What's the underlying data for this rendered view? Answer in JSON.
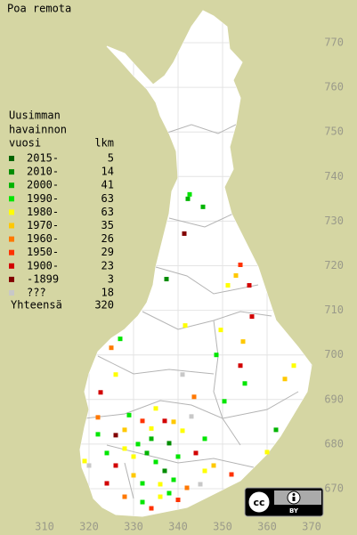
{
  "map": {
    "title": "Poa remota",
    "legend_header": [
      "Uusimman",
      "havainnon",
      "vuosi"
    ],
    "count_header": "lkm",
    "legend": [
      {
        "label": "2015-",
        "count": 5,
        "color": "#006400"
      },
      {
        "label": "2010-",
        "count": 14,
        "color": "#008c00"
      },
      {
        "label": "2000-",
        "count": 41,
        "color": "#00b400"
      },
      {
        "label": "1990-",
        "count": 63,
        "color": "#00e600"
      },
      {
        "label": "1980-",
        "count": 63,
        "color": "#ffff00"
      },
      {
        "label": "1970-",
        "count": 35,
        "color": "#ffc800"
      },
      {
        "label": "1960-",
        "count": 26,
        "color": "#ff7800"
      },
      {
        "label": "1950-",
        "count": 29,
        "color": "#ff3200"
      },
      {
        "label": "1900-",
        "count": 23,
        "color": "#d20000"
      },
      {
        "label": "-1899",
        "count": 3,
        "color": "#820000"
      },
      {
        "label": "???",
        "count": 18,
        "color": "#c8c8c8"
      }
    ],
    "total_label": "Yhteensä",
    "total": 320,
    "xticks": [
      310,
      320,
      330,
      340,
      350,
      360,
      370
    ],
    "yticks": [
      670,
      680,
      690,
      700,
      710,
      720,
      730,
      740,
      750,
      760,
      770
    ],
    "license": {
      "icon": "cc",
      "label": "BY"
    },
    "points": [
      [
        342.6,
        736,
        3
      ],
      [
        342.2,
        735,
        2
      ],
      [
        345.6,
        733.2,
        2
      ],
      [
        341.4,
        727.2,
        9
      ],
      [
        337.4,
        717,
        1
      ],
      [
        354,
        720.2,
        7
      ],
      [
        356,
        715.6,
        8
      ],
      [
        351.2,
        715.6,
        4
      ],
      [
        353,
        717.8,
        5
      ],
      [
        356.6,
        708.6,
        8
      ],
      [
        341.6,
        706.6,
        4
      ],
      [
        349.6,
        705.6,
        4
      ],
      [
        354.6,
        703,
        5
      ],
      [
        348.6,
        700,
        3
      ],
      [
        354,
        697.6,
        8
      ],
      [
        326,
        695.6,
        4
      ],
      [
        322.6,
        691.6,
        8
      ],
      [
        341,
        695.6,
        10
      ],
      [
        355,
        693.6,
        3
      ],
      [
        366,
        697.6,
        4
      ],
      [
        364,
        694.6,
        5
      ],
      [
        343.6,
        690.6,
        6
      ],
      [
        322,
        682.2,
        3
      ],
      [
        328,
        683.2,
        5
      ],
      [
        332,
        685.2,
        7
      ],
      [
        334,
        681.2,
        2
      ],
      [
        338,
        680.2,
        1
      ],
      [
        340,
        677.2,
        3
      ],
      [
        330,
        677.2,
        4
      ],
      [
        326,
        675.2,
        8
      ],
      [
        320,
        675.2,
        10
      ],
      [
        332,
        671.2,
        3
      ],
      [
        336,
        668.2,
        4
      ],
      [
        342,
        670.2,
        6
      ],
      [
        348,
        675.2,
        5
      ],
      [
        352,
        673.2,
        7
      ],
      [
        360,
        678.2,
        4
      ],
      [
        324,
        671.2,
        8
      ],
      [
        328,
        668.2,
        6
      ],
      [
        334,
        665.6,
        7
      ],
      [
        319,
        676.2,
        4
      ],
      [
        346,
        681.2,
        3
      ],
      [
        337,
        685.2,
        8
      ],
      [
        343,
        686.2,
        10
      ],
      [
        325,
        701.6,
        6
      ],
      [
        327,
        703.6,
        3
      ],
      [
        350.4,
        689.6,
        3
      ],
      [
        362,
        683.2,
        2
      ],
      [
        331,
        680,
        3
      ],
      [
        333,
        678,
        2
      ],
      [
        335,
        676,
        3
      ],
      [
        337,
        674,
        1
      ],
      [
        339,
        672,
        3
      ],
      [
        336,
        671,
        4
      ],
      [
        338,
        669,
        3
      ],
      [
        330,
        673,
        5
      ],
      [
        328,
        679,
        4
      ],
      [
        324,
        678,
        3
      ],
      [
        326,
        682,
        9
      ],
      [
        341,
        683,
        4
      ],
      [
        344,
        678,
        8
      ],
      [
        346,
        674,
        4
      ],
      [
        340,
        667.5,
        7
      ],
      [
        332,
        667,
        3
      ],
      [
        334,
        683.5,
        4
      ],
      [
        339,
        685,
        5
      ],
      [
        322,
        686,
        6
      ],
      [
        329,
        686.5,
        3
      ],
      [
        335,
        688,
        4
      ],
      [
        345,
        671,
        10
      ]
    ]
  }
}
